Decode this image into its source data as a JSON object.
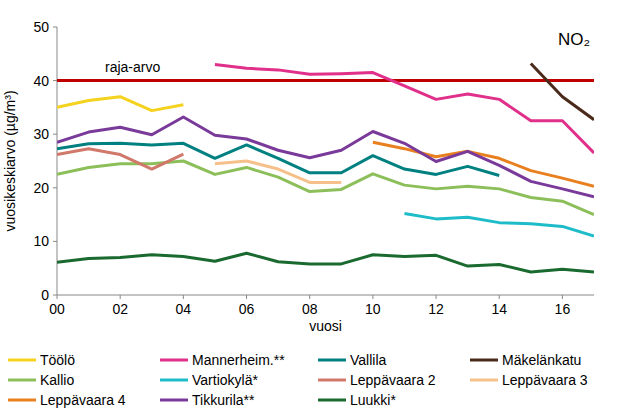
{
  "chart_data": {
    "type": "line",
    "title": "NO₂",
    "x_label": "vuosi",
    "y_label": "vuosikeskiarvo (µg/m³)",
    "x": [
      2000,
      2001,
      2002,
      2003,
      2004,
      2005,
      2006,
      2007,
      2008,
      2009,
      2010,
      2011,
      2012,
      2013,
      2014,
      2015,
      2016,
      2017
    ],
    "xlim": [
      2000,
      2017
    ],
    "xticks": [
      {
        "value": 2000,
        "label": "00"
      },
      {
        "value": 2002,
        "label": "02"
      },
      {
        "value": 2004,
        "label": "04"
      },
      {
        "value": 2006,
        "label": "06"
      },
      {
        "value": 2008,
        "label": "08"
      },
      {
        "value": 2010,
        "label": "10"
      },
      {
        "value": 2012,
        "label": "12"
      },
      {
        "value": 2014,
        "label": "14"
      },
      {
        "value": 2016,
        "label": "16"
      }
    ],
    "ylim": [
      0,
      50
    ],
    "yticks": [
      0,
      10,
      20,
      30,
      40,
      50
    ],
    "grid": false,
    "legend": "bottom",
    "annotations": [
      {
        "text": "raja-arvo",
        "y": 40,
        "color": "#c00000"
      }
    ],
    "series": [
      {
        "name": "Töölö",
        "color": "#f5d21e",
        "values": [
          35,
          36.3,
          37,
          34.4,
          35.5,
          null,
          null,
          null,
          null,
          null,
          null,
          null,
          null,
          null,
          null,
          null,
          null,
          null
        ]
      },
      {
        "name": "Mannerheim.**",
        "color": "#e0308a",
        "values": [
          null,
          null,
          null,
          null,
          null,
          43,
          42.3,
          42,
          41.2,
          41.3,
          41.5,
          39,
          36.5,
          37.5,
          36.5,
          32.5,
          32.5,
          26.5
        ]
      },
      {
        "name": "Vallila",
        "color": "#008080",
        "values": [
          27.3,
          28.2,
          28.3,
          28,
          28.3,
          25.5,
          28,
          25.5,
          22.8,
          22.8,
          26,
          23.5,
          22.5,
          24,
          22.3,
          null,
          null,
          null
        ]
      },
      {
        "name": "Mäkelänkatu",
        "color": "#4a2a1a",
        "values": [
          null,
          null,
          null,
          null,
          null,
          null,
          null,
          null,
          null,
          null,
          null,
          null,
          null,
          null,
          null,
          43.2,
          37,
          32.7
        ]
      },
      {
        "name": "Kallio",
        "color": "#8cbf5a",
        "values": [
          22.5,
          23.8,
          24.5,
          24.5,
          25,
          22.5,
          23.8,
          22,
          19.3,
          19.7,
          22.6,
          20.5,
          19.8,
          20.3,
          19.8,
          18.2,
          17.5,
          15
        ]
      },
      {
        "name": "Vartiokylä*",
        "color": "#1ebcc8",
        "values": [
          null,
          null,
          null,
          null,
          null,
          null,
          null,
          null,
          null,
          null,
          null,
          15.2,
          14.2,
          14.5,
          13.5,
          13.3,
          12.8,
          11
        ]
      },
      {
        "name": "Leppävaara 2",
        "color": "#d0786a",
        "values": [
          26.2,
          27.3,
          26.2,
          23.5,
          26.3,
          null,
          null,
          null,
          null,
          null,
          null,
          null,
          null,
          null,
          null,
          null,
          null,
          null
        ]
      },
      {
        "name": "Leppävaara 3",
        "color": "#f5c08a",
        "values": [
          null,
          null,
          null,
          null,
          null,
          24.5,
          25,
          23.5,
          21,
          21,
          null,
          null,
          null,
          null,
          null,
          null,
          null,
          null
        ]
      },
      {
        "name": "Leppävaara 4",
        "color": "#e88020",
        "values": [
          null,
          null,
          null,
          null,
          null,
          null,
          null,
          null,
          null,
          null,
          28.5,
          27.3,
          25.8,
          26.8,
          25.5,
          23.2,
          21.8,
          20.3
        ]
      },
      {
        "name": "Tikkurila**",
        "color": "#7a3a9a",
        "values": [
          28.5,
          30.4,
          31.3,
          29.9,
          33.2,
          29.8,
          29.1,
          27,
          25.6,
          27,
          30.5,
          28.3,
          24.9,
          26.8,
          24.2,
          21.2,
          19.8,
          18.3
        ]
      },
      {
        "name": "Luukki*",
        "color": "#1a6a30",
        "values": [
          6.1,
          6.8,
          7,
          7.5,
          7.2,
          6.3,
          7.8,
          6.2,
          5.8,
          5.8,
          7.5,
          7.2,
          7.4,
          5.4,
          5.7,
          4.3,
          4.8,
          4.3
        ]
      }
    ]
  }
}
